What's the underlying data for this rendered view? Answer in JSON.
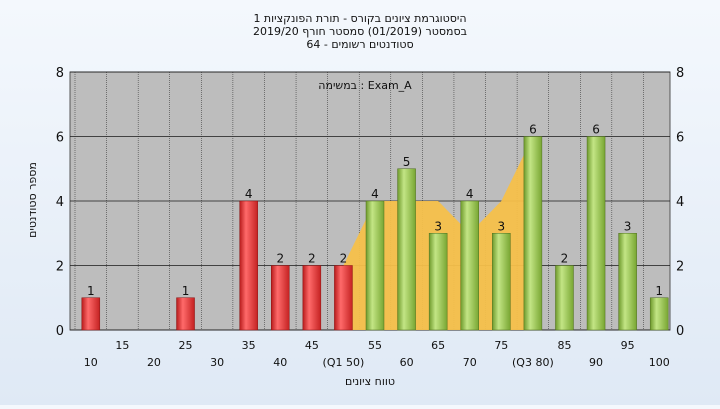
{
  "chart_data": {
    "type": "bar",
    "title_lines": [
      "היסטוגרמת ציונים בקורס - תורת הפונקציות 1",
      "בסמסטר  (01/2019)  סמסטר חורף  2019/20",
      "סטודנטים רשומים - 64"
    ],
    "legend_text": "Exam_A : במשימה",
    "xlabel": "טווח ציונים",
    "ylabel": "מספר סטודנטים",
    "ylim": [
      0,
      8
    ],
    "yticks": [
      0,
      2,
      4,
      6,
      8
    ],
    "categories": [
      "10",
      "15",
      "20",
      "25",
      "30",
      "35",
      "40",
      "45",
      "50",
      "55",
      "60",
      "65",
      "70",
      "75",
      "80",
      "85",
      "90",
      "95",
      "100"
    ],
    "category_labels": [
      "10",
      "15",
      "20",
      "25",
      "30",
      "35",
      "40",
      "45",
      "(Q1 50)",
      "55",
      "60",
      "65",
      "70",
      "75",
      "(Q3 80)",
      "85",
      "90",
      "95",
      "100"
    ],
    "values": [
      1,
      0,
      0,
      1,
      0,
      4,
      2,
      2,
      2,
      4,
      5,
      3,
      4,
      3,
      6,
      2,
      6,
      3,
      1
    ],
    "bar_colors": [
      "red",
      "red",
      "red",
      "red",
      "red",
      "red",
      "red",
      "red",
      "red",
      "green",
      "green",
      "green",
      "green",
      "green",
      "green",
      "green",
      "green",
      "green",
      "green"
    ],
    "quartile_area": {
      "categories": [
        "50",
        "55",
        "60",
        "65",
        "70",
        "75",
        "80"
      ],
      "values": [
        2,
        4,
        4,
        4,
        3,
        4,
        6
      ]
    },
    "grid": true,
    "colors": {
      "plot_bg": "#bdbdbd",
      "red_bar": "#e23a3a",
      "green_bar": "#8cc040",
      "area": "#f5c04a"
    }
  }
}
